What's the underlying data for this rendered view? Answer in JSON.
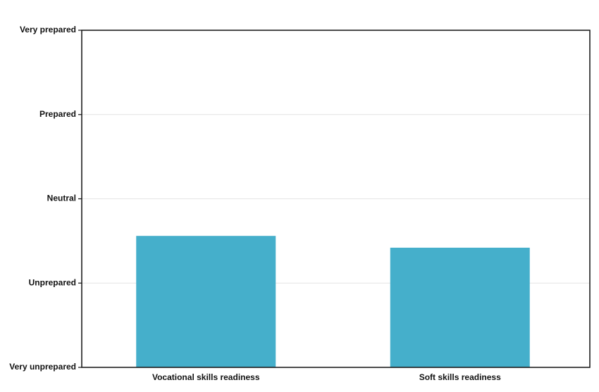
{
  "chart_data": {
    "type": "bar",
    "title": "",
    "xlabel": "",
    "ylabel": "",
    "categories": [
      "Vocational skills readiness",
      "Soft skills readiness"
    ],
    "values": [
      1.56,
      1.42
    ],
    "ylim": [
      0,
      4
    ],
    "yticks": [
      0,
      1,
      2,
      3,
      4
    ],
    "ytick_labels": [
      "Very unprepared",
      "Unprepared",
      "Neutral",
      "Prepared",
      "Very prepared"
    ],
    "grid": "horizontal",
    "legend": "none",
    "bar_color": "#45AFCB"
  }
}
